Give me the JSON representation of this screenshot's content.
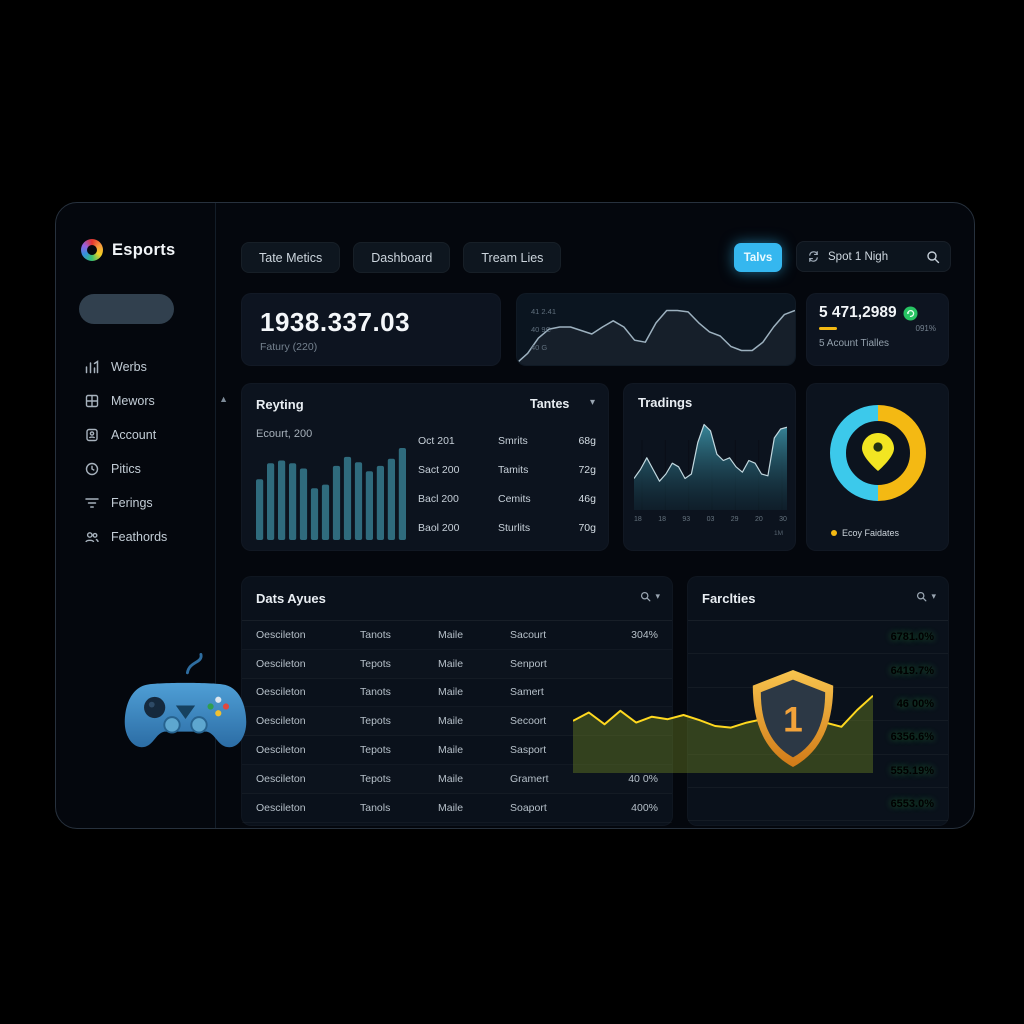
{
  "colors": {
    "accent_blue": "#35b7ef",
    "bar_teal": "#2f6b7d",
    "spark_line": "#9db1bf",
    "spark_fill": "#161f2a",
    "trad_line": "#c2d8df",
    "donut_cyan": "#3cc9eb",
    "donut_yellow": "#f4b913",
    "pin_yellow": "#f2e522",
    "pin_mark": "#233312",
    "line_yellow": "#ffd91f",
    "fill_olive": "rgba(101,125,36,0.45)",
    "green_value": "#3fd453",
    "green_icon": "#27c463",
    "shield_number": "#f3a33a"
  },
  "sidebar": {
    "logo_text": "Esports",
    "items": [
      {
        "label": "Werbs"
      },
      {
        "label": "Mewors"
      },
      {
        "label": "Account"
      },
      {
        "label": "Pitics"
      },
      {
        "label": "Ferings"
      },
      {
        "label": "Feathords"
      }
    ]
  },
  "topnav": {
    "tabs": [
      "Tate Metics",
      "Dashboard",
      "Tream Lies"
    ],
    "action_button": "Talvs",
    "search_label": "Spot 1 Nigh"
  },
  "stats": {
    "main": {
      "value": "1938.337.03",
      "label": "Fatury (220)"
    },
    "spark": {
      "y_labels": [
        "41 2.41",
        "40 9C",
        "40 G"
      ],
      "values": [
        3,
        17,
        39,
        52,
        55,
        55,
        50,
        45,
        55,
        64,
        55,
        36,
        33,
        61,
        79,
        79,
        77,
        61,
        48,
        42,
        27,
        21,
        21,
        33,
        55,
        73,
        79
      ]
    },
    "account": {
      "value": "5 471,2989",
      "badge": "091%",
      "label": "5 Acount Tialles"
    }
  },
  "reyting": {
    "title": "Reyting",
    "subtitle": "Ecourt, 200",
    "dropdown": "Tantes",
    "bars": [
      68,
      86,
      89,
      86,
      80,
      58,
      62,
      83,
      93,
      87,
      77,
      83,
      91,
      103
    ],
    "rows": [
      {
        "period": "Oct 201",
        "name": "Smrits",
        "value": "68g"
      },
      {
        "period": "Sact 200",
        "name": "Tamits",
        "value": "72g"
      },
      {
        "period": "Bacl 200",
        "name": "Cemits",
        "value": "46g"
      },
      {
        "period": "Baol 200",
        "name": "Sturlits",
        "value": "70g"
      }
    ]
  },
  "tradings": {
    "title": "Tradings",
    "values": [
      35,
      45,
      58,
      45,
      32,
      40,
      52,
      48,
      35,
      40,
      75,
      95,
      88,
      62,
      55,
      58,
      48,
      42,
      55,
      52,
      40,
      38,
      80,
      90,
      92
    ],
    "x_labels": [
      "18",
      "18",
      "93",
      "03",
      "29",
      "20",
      "30"
    ],
    "footnote": "1M"
  },
  "donut": {
    "legend": "Ecoy Faidates",
    "slices": [
      {
        "value": 50,
        "color_key": "donut_cyan"
      },
      {
        "value": 50,
        "color_key": "donut_yellow"
      }
    ]
  },
  "data_table": {
    "title": "Dats Ayues",
    "rows": [
      {
        "desc": "Oescileton",
        "tag": "Tanots",
        "mode": "Maile",
        "support": "Sacourt",
        "pct": "304%"
      },
      {
        "desc": "Oescileton",
        "tag": "Tepots",
        "mode": "Maile",
        "support": "Senport",
        "pct": ""
      },
      {
        "desc": "Oescileton",
        "tag": "Tanots",
        "mode": "Maile",
        "support": "Samert",
        "pct": ""
      },
      {
        "desc": "Oescileton",
        "tag": "Tepots",
        "mode": "Maile",
        "support": "Secoort",
        "pct": ""
      },
      {
        "desc": "Oescileton",
        "tag": "Tepots",
        "mode": "Maile",
        "support": "Sasport",
        "pct": ""
      },
      {
        "desc": "Oescileton",
        "tag": "Tepots",
        "mode": "Maile",
        "support": "Gramert",
        "pct": "40 0%"
      },
      {
        "desc": "Oescileton",
        "tag": "Tanols",
        "mode": "Maile",
        "support": "Soaport",
        "pct": "400%"
      }
    ]
  },
  "facilities": {
    "title": "Farclties",
    "badge": "1",
    "values": [
      "6781.0%",
      "6419.7%",
      "46 00%",
      "6356.6%",
      "555.19%",
      "6553.0%"
    ]
  },
  "overlay": {
    "values": [
      62,
      72,
      58,
      74,
      60,
      67,
      64,
      69,
      63,
      56,
      54,
      60,
      64,
      58,
      56,
      66,
      60,
      55,
      75,
      92
    ]
  }
}
